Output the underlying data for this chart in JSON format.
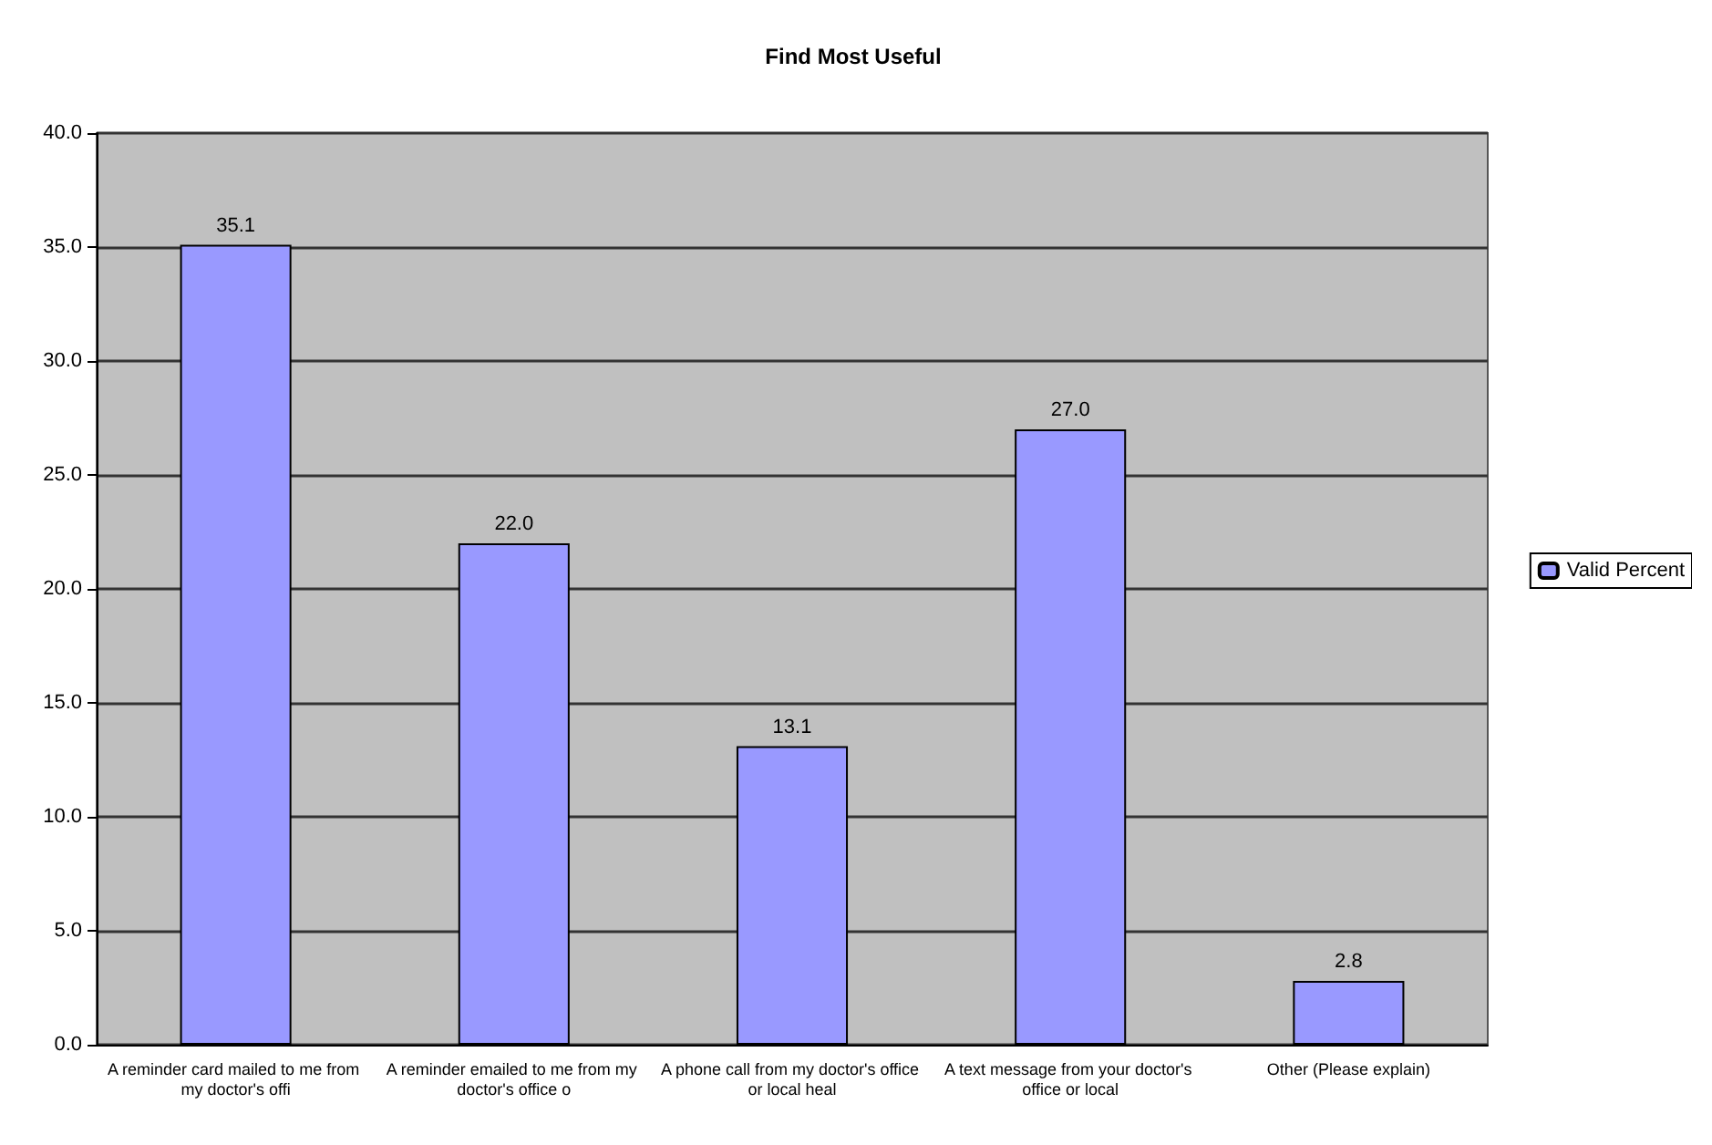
{
  "chart_data": {
    "type": "bar",
    "title": "Find Most Useful",
    "categories": [
      "A reminder card mailed to me from my doctor's offi",
      "A reminder emailed to me from my doctor's office o",
      "A phone call from my doctor's office or local heal",
      "A text message from your doctor's office or local",
      "Other (Please explain)"
    ],
    "series": [
      {
        "name": "Valid Percent",
        "color": "#9999ff",
        "values": [
          35.1,
          22.0,
          13.1,
          27.0,
          2.8
        ],
        "value_labels": [
          "35.1",
          "22.0",
          "13.1",
          "27.0",
          "2.8"
        ]
      }
    ],
    "ylim": [
      0,
      40
    ],
    "yticks": [
      {
        "value": 0,
        "label": "0.0"
      },
      {
        "value": 5,
        "label": "5.0"
      },
      {
        "value": 10,
        "label": "10.0"
      },
      {
        "value": 15,
        "label": "15.0"
      },
      {
        "value": 20,
        "label": "20.0"
      },
      {
        "value": 25,
        "label": "25.0"
      },
      {
        "value": 30,
        "label": "30.0"
      },
      {
        "value": 35,
        "label": "35.0"
      },
      {
        "value": 40,
        "label": "40.0"
      }
    ],
    "grid": "y",
    "legend": "right"
  }
}
